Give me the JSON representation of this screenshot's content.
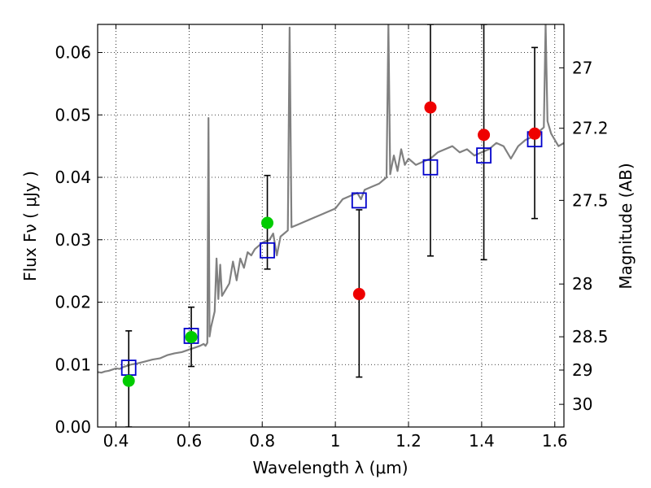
{
  "chart_data": {
    "type": "scatter",
    "title": "",
    "xlabel": "Wavelength  λ (μm)",
    "ylabel": "Flux  Fν  ( μJy )",
    "ylabel_right": "Magnitude (AB)",
    "xlim": [
      0.35,
      1.625
    ],
    "ylim": [
      0.0,
      0.0645
    ],
    "grid": true,
    "grid_style": "dotted",
    "x_ticks": [
      0.4,
      0.6,
      0.8,
      1.0,
      1.2,
      1.4,
      1.6
    ],
    "x_tick_labels": [
      "0.4",
      "0.6",
      "0.8",
      "1",
      "1.2",
      "1.4",
      "1.6"
    ],
    "y_ticks": [
      0.0,
      0.01,
      0.02,
      0.03,
      0.04,
      0.05,
      0.06
    ],
    "y_tick_labels": [
      "0.00",
      "0.01",
      "0.02",
      "0.03",
      "0.04",
      "0.05",
      "0.06"
    ],
    "right_ticks": [
      {
        "label": "27",
        "magnitude": 27
      },
      {
        "label": "27.2",
        "magnitude": 27.2
      },
      {
        "label": "27.5",
        "magnitude": 27.5
      },
      {
        "label": "28",
        "magnitude": 28
      },
      {
        "label": "28.5",
        "magnitude": 28.5
      },
      {
        "label": "29",
        "magnitude": 29
      },
      {
        "label": "30",
        "magnitude": 30
      }
    ],
    "spectrum": {
      "color": "#808080",
      "points": [
        [
          0.35,
          0.0088
        ],
        [
          0.36,
          0.0087
        ],
        [
          0.37,
          0.0089
        ],
        [
          0.38,
          0.009
        ],
        [
          0.39,
          0.0092
        ],
        [
          0.4,
          0.0094
        ],
        [
          0.41,
          0.0093
        ],
        [
          0.42,
          0.0096
        ],
        [
          0.43,
          0.0098
        ],
        [
          0.44,
          0.01
        ],
        [
          0.46,
          0.0102
        ],
        [
          0.48,
          0.0105
        ],
        [
          0.5,
          0.0108
        ],
        [
          0.52,
          0.011
        ],
        [
          0.54,
          0.0115
        ],
        [
          0.56,
          0.0118
        ],
        [
          0.58,
          0.012
        ],
        [
          0.6,
          0.0124
        ],
        [
          0.62,
          0.0128
        ],
        [
          0.63,
          0.013
        ],
        [
          0.64,
          0.0133
        ],
        [
          0.645,
          0.013
        ],
        [
          0.65,
          0.0135
        ],
        [
          0.653,
          0.0495
        ],
        [
          0.656,
          0.0145
        ],
        [
          0.66,
          0.016
        ],
        [
          0.67,
          0.0185
        ],
        [
          0.675,
          0.027
        ],
        [
          0.68,
          0.0205
        ],
        [
          0.685,
          0.026
        ],
        [
          0.69,
          0.021
        ],
        [
          0.7,
          0.022
        ],
        [
          0.71,
          0.023
        ],
        [
          0.72,
          0.0265
        ],
        [
          0.73,
          0.0235
        ],
        [
          0.74,
          0.027
        ],
        [
          0.75,
          0.0255
        ],
        [
          0.76,
          0.028
        ],
        [
          0.77,
          0.0275
        ],
        [
          0.78,
          0.0285
        ],
        [
          0.79,
          0.029
        ],
        [
          0.8,
          0.0295
        ],
        [
          0.81,
          0.0298
        ],
        [
          0.82,
          0.03
        ],
        [
          0.83,
          0.031
        ],
        [
          0.84,
          0.0275
        ],
        [
          0.85,
          0.0305
        ],
        [
          0.86,
          0.031
        ],
        [
          0.87,
          0.0315
        ],
        [
          0.875,
          0.064
        ],
        [
          0.88,
          0.032
        ],
        [
          0.9,
          0.0325
        ],
        [
          0.92,
          0.033
        ],
        [
          0.94,
          0.0335
        ],
        [
          0.96,
          0.034
        ],
        [
          0.98,
          0.0345
        ],
        [
          1.0,
          0.035
        ],
        [
          1.02,
          0.0365
        ],
        [
          1.04,
          0.037
        ],
        [
          1.06,
          0.0375
        ],
        [
          1.07,
          0.0365
        ],
        [
          1.08,
          0.038
        ],
        [
          1.1,
          0.0385
        ],
        [
          1.12,
          0.039
        ],
        [
          1.14,
          0.04
        ],
        [
          1.145,
          0.0645
        ],
        [
          1.15,
          0.0405
        ],
        [
          1.16,
          0.0435
        ],
        [
          1.17,
          0.041
        ],
        [
          1.18,
          0.0445
        ],
        [
          1.19,
          0.042
        ],
        [
          1.2,
          0.043
        ],
        [
          1.22,
          0.042
        ],
        [
          1.24,
          0.0425
        ],
        [
          1.26,
          0.043
        ],
        [
          1.28,
          0.044
        ],
        [
          1.3,
          0.0445
        ],
        [
          1.32,
          0.045
        ],
        [
          1.34,
          0.044
        ],
        [
          1.36,
          0.0445
        ],
        [
          1.38,
          0.0435
        ],
        [
          1.4,
          0.044
        ],
        [
          1.42,
          0.0445
        ],
        [
          1.44,
          0.0455
        ],
        [
          1.46,
          0.045
        ],
        [
          1.48,
          0.043
        ],
        [
          1.5,
          0.045
        ],
        [
          1.52,
          0.046
        ],
        [
          1.54,
          0.0465
        ],
        [
          1.56,
          0.0475
        ],
        [
          1.57,
          0.048
        ],
        [
          1.575,
          0.0645
        ],
        [
          1.58,
          0.049
        ],
        [
          1.59,
          0.047
        ],
        [
          1.6,
          0.046
        ],
        [
          1.61,
          0.045
        ],
        [
          1.625,
          0.0455
        ]
      ]
    },
    "series": [
      {
        "marker": "open-square",
        "color": "#0000cc",
        "points": [
          {
            "x": 0.435,
            "y": 0.0095
          },
          {
            "x": 0.606,
            "y": 0.0146
          },
          {
            "x": 0.814,
            "y": 0.0283
          },
          {
            "x": 1.065,
            "y": 0.0363
          },
          {
            "x": 1.26,
            "y": 0.0416
          },
          {
            "x": 1.406,
            "y": 0.0435
          },
          {
            "x": 1.545,
            "y": 0.0461
          }
        ]
      },
      {
        "marker": "filled-circle",
        "color": "#00cc00",
        "points": [
          {
            "x": 0.435,
            "y": 0.0074,
            "err": [
              0.0,
              0.0154
            ]
          },
          {
            "x": 0.606,
            "y": 0.0144,
            "err": [
              0.0097,
              0.0192
            ]
          },
          {
            "x": 0.814,
            "y": 0.0327,
            "err": [
              0.0253,
              0.0403
            ]
          }
        ]
      },
      {
        "marker": "filled-circle",
        "color": "#ee0000",
        "points": [
          {
            "x": 1.065,
            "y": 0.0213,
            "err": [
              0.008,
              0.0348
            ]
          },
          {
            "x": 1.26,
            "y": 0.0512,
            "err": [
              0.0274,
              0.0645
            ]
          },
          {
            "x": 1.406,
            "y": 0.0468,
            "err": [
              0.0268,
              0.0645
            ]
          },
          {
            "x": 1.545,
            "y": 0.047,
            "err": [
              0.0334,
              0.0608
            ]
          }
        ]
      }
    ]
  }
}
